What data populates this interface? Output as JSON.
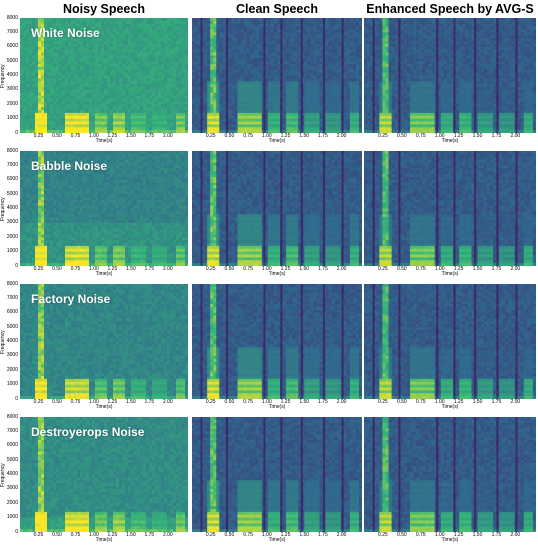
{
  "columns": [
    {
      "title": "Noisy Speech"
    },
    {
      "title": "Clean Speech"
    },
    {
      "title": "Enhanced Speech by AVG-S"
    }
  ],
  "rows": [
    {
      "noise_label": "White Noise",
      "noisy_style": "white"
    },
    {
      "noise_label": "Babble Noise",
      "noisy_style": "babble"
    },
    {
      "noise_label": "Factory Noise",
      "noisy_style": "factory"
    },
    {
      "noise_label": "Destroyerops Noise",
      "noisy_style": "destroyer"
    }
  ],
  "axes": {
    "ylabel": "Frequency",
    "xlabel": "Time(s)",
    "yticks": [
      "8000",
      "7000",
      "6000",
      "5000",
      "4000",
      "3000",
      "2000",
      "1000",
      "0"
    ],
    "xticks": [
      "0.25",
      "0.50",
      "0.75",
      "1.00",
      "1.25",
      "1.50",
      "1.75",
      "2.00"
    ]
  },
  "colors": {
    "low": "#440154",
    "mid": "#31688e",
    "high": "#35b779",
    "peak": "#fde725"
  }
}
